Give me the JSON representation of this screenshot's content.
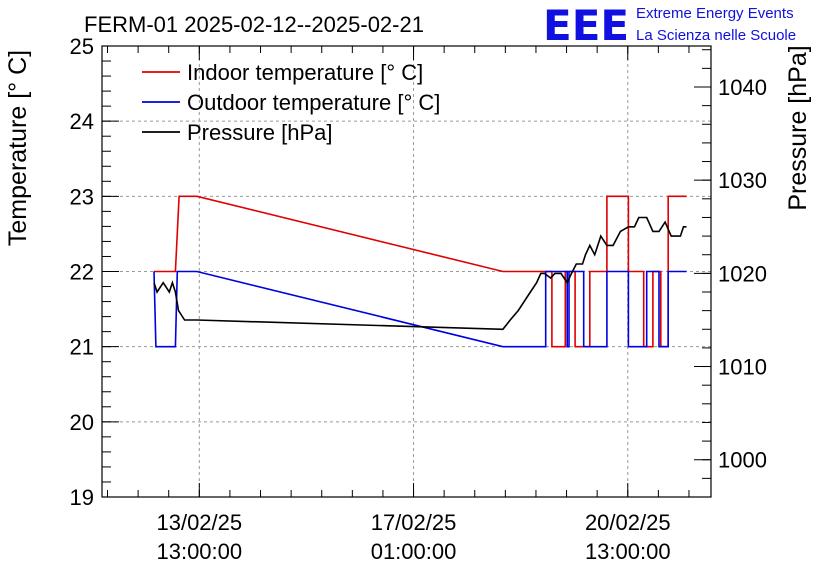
{
  "header": {
    "title": "FERM-01 2025-02-12--2025-02-21",
    "logo_text": "EEE",
    "logo_line1": "Extreme Energy Events",
    "logo_line2": "La Scienza nelle Scuole"
  },
  "chart_data": {
    "type": "line",
    "title": "FERM-01 2025-02-12--2025-02-21",
    "ylabel": "Temperature [° C]",
    "y2label": "Pressure [hPa]",
    "ylim": [
      19,
      25
    ],
    "y2lim": [
      996,
      1044.4
    ],
    "xlim": [
      11.95,
      21.9
    ],
    "grid": true,
    "legend_placement": "top-left",
    "y_ticks": [
      "19",
      "20",
      "21",
      "22",
      "23",
      "24",
      "25"
    ],
    "y2_ticks": [
      "1000",
      "1010",
      "1020",
      "1030",
      "1040"
    ],
    "x_ticks": [
      {
        "x": 13.54,
        "line1": "13/02/25",
        "line2": "13:00:00"
      },
      {
        "x": 17.04,
        "line1": "17/02/25",
        "line2": "01:00:00"
      },
      {
        "x": 20.54,
        "line1": "20/02/25",
        "line2": "13:00:00"
      }
    ],
    "series": [
      {
        "name": "Indoor temperature [° C]",
        "color": "#e00000",
        "axis": "left",
        "x": [
          12.8,
          13.15,
          13.21,
          13.5,
          18.5,
          19.3,
          19.3,
          19.52,
          19.52,
          19.68,
          19.68,
          19.92,
          19.92,
          20.2,
          20.2,
          20.55,
          20.55,
          20.8,
          20.8,
          20.95,
          20.95,
          21.08,
          21.08,
          21.2,
          21.2,
          21.5
        ],
        "y": [
          22,
          22,
          23,
          23,
          22,
          22,
          21,
          21,
          22,
          22,
          21,
          21,
          22,
          22,
          23,
          23,
          22,
          22,
          21,
          21,
          22,
          22,
          21,
          21,
          23,
          23
        ]
      },
      {
        "name": "Outdoor temperature [° C]",
        "color": "#0000e0",
        "axis": "left",
        "x": [
          12.8,
          12.83,
          13.15,
          13.18,
          13.5,
          18.5,
          19.2,
          19.2,
          19.55,
          19.55,
          19.58,
          19.58,
          19.82,
          19.82,
          20.2,
          20.2,
          20.55,
          20.55,
          20.85,
          20.85,
          21.05,
          21.05,
          21.2,
          21.2,
          21.5
        ],
        "y": [
          22,
          21,
          21,
          22,
          22,
          21,
          21,
          22,
          22,
          21,
          21,
          22,
          22,
          21,
          21,
          22,
          22,
          21,
          21,
          22,
          22,
          21,
          21,
          22,
          22
        ]
      },
      {
        "name": "Pressure [hPa]",
        "color": "#000000",
        "axis": "right",
        "x": [
          12.8,
          12.85,
          12.95,
          13.05,
          13.1,
          13.15,
          13.2,
          13.3,
          13.5,
          18.5,
          18.62,
          18.75,
          18.85,
          18.95,
          19.05,
          19.12,
          19.18,
          19.28,
          19.35,
          19.45,
          19.55,
          19.62,
          19.7,
          19.8,
          19.85,
          19.92,
          20.0,
          20.1,
          20.2,
          20.3,
          20.42,
          20.55,
          20.65,
          20.72,
          20.85,
          20.95,
          21.05,
          21.15,
          21.25,
          21.4,
          21.45,
          21.5
        ],
        "y": [
          1019.0,
          1018.0,
          1019.0,
          1018.0,
          1019.0,
          1018.0,
          1016.0,
          1015.0,
          1015.0,
          1014.0,
          1015.0,
          1016.0,
          1017.0,
          1018.0,
          1019.0,
          1020.0,
          1020.0,
          1019.5,
          1020.0,
          1020.0,
          1019.0,
          1020.0,
          1021.0,
          1021.0,
          1022.0,
          1023.0,
          1022.0,
          1024.0,
          1023.0,
          1023.0,
          1024.5,
          1025.0,
          1025.0,
          1026.0,
          1026.0,
          1024.5,
          1024.5,
          1025.5,
          1024.0,
          1024.0,
          1025.0,
          1025.0
        ]
      }
    ]
  }
}
